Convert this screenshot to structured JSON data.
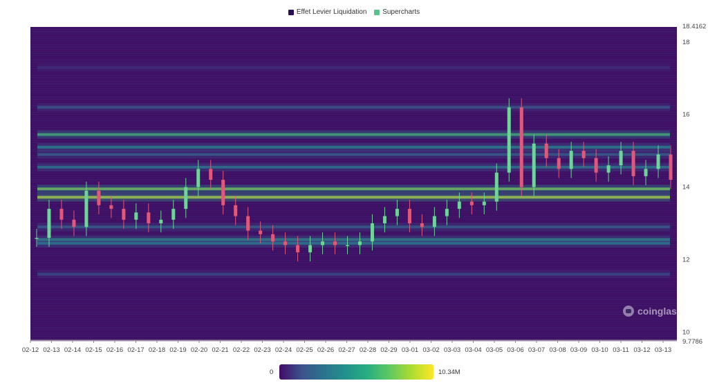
{
  "legend": [
    {
      "label": "Effet Levier Liquidation",
      "color": "#2b0f54"
    },
    {
      "label": "Supercharts",
      "color": "#5cc08a"
    }
  ],
  "colors": {
    "heat_low": "#440a68",
    "heat_mid": "#2c728e",
    "heat_high": "#dde318",
    "candle_up": "#6fd39a",
    "candle_down": "#e0597b"
  },
  "colorbar": {
    "min_label": "0",
    "max_label": "10.34M"
  },
  "watermark": {
    "text": "coinglass",
    "icon": "coinglass-logo-icon"
  },
  "chart_data": {
    "type": "heatmap",
    "title": "",
    "xlabel": "",
    "ylabel": "",
    "x_ticks": [
      "02-12",
      "02-13",
      "02-14",
      "02-15",
      "02-16",
      "02-17",
      "02-18",
      "02-19",
      "02-20",
      "02-21",
      "02-22",
      "02-23",
      "02-24",
      "02-25",
      "02-26",
      "02-27",
      "02-28",
      "02-29",
      "03-01",
      "03-02",
      "03-03",
      "03-04",
      "03-05",
      "03-06",
      "03-07",
      "03-08",
      "03-09",
      "03-10",
      "03-11",
      "03-12",
      "03-13"
    ],
    "y_ticks": [
      "18.4162",
      "18",
      "16",
      "14",
      "12",
      "10",
      "9.7786"
    ],
    "ylim": [
      9.7786,
      18.4162
    ],
    "color_scale": {
      "min": 0,
      "max": 10340000,
      "min_label": "0",
      "max_label": "10.34M"
    },
    "price_close": [
      12.6,
      13.4,
      13.1,
      12.9,
      13.9,
      13.5,
      13.4,
      13.1,
      13.3,
      13.0,
      13.1,
      13.4,
      14.0,
      14.5,
      14.2,
      13.5,
      13.2,
      12.8,
      12.7,
      12.5,
      12.4,
      12.2,
      12.4,
      12.5,
      12.4,
      12.4,
      12.5,
      13.0,
      13.2,
      13.4,
      13.0,
      12.9,
      13.2,
      13.4,
      13.6,
      13.5,
      13.6,
      14.4,
      16.2,
      14.0,
      15.2,
      14.8,
      14.5,
      15.0,
      14.8,
      14.4,
      14.6,
      15.0,
      14.3,
      14.5,
      14.9,
      14.2
    ],
    "heat_bands": [
      {
        "price": 12.55,
        "intensity": 0.55
      },
      {
        "price": 12.45,
        "intensity": 0.45
      },
      {
        "price": 13.72,
        "intensity": 0.95
      },
      {
        "price": 13.95,
        "intensity": 0.85
      },
      {
        "price": 15.45,
        "intensity": 0.7
      },
      {
        "price": 15.1,
        "intensity": 0.5
      },
      {
        "price": 14.55,
        "intensity": 0.45
      },
      {
        "price": 14.9,
        "intensity": 0.35
      },
      {
        "price": 16.2,
        "intensity": 0.3
      },
      {
        "price": 12.9,
        "intensity": 0.35
      },
      {
        "price": 11.6,
        "intensity": 0.25
      },
      {
        "price": 17.3,
        "intensity": 0.15
      }
    ]
  }
}
